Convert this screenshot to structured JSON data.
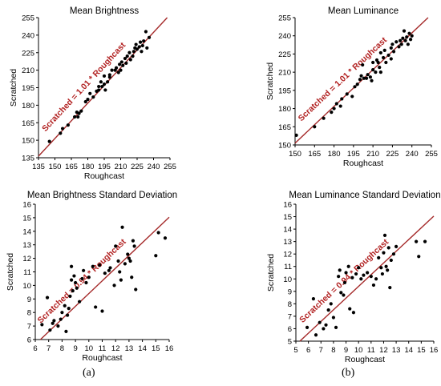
{
  "figure": {
    "caption_a": "(a)",
    "caption_b": "(b)"
  },
  "chart_data": [
    {
      "type": "scatter",
      "title": "Mean Brightness",
      "xlabel": "Roughcast",
      "ylabel": "Scratched",
      "xlim": [
        135,
        255
      ],
      "ylim": [
        135,
        255
      ],
      "xticks": [
        135,
        150,
        165,
        180,
        195,
        210,
        225,
        240,
        255
      ],
      "yticks": [
        135,
        150,
        165,
        180,
        195,
        210,
        225,
        240,
        255
      ],
      "grid": false,
      "fit_slope": 1.01,
      "fit_label": "Scratched = 1.01 * Roughcast",
      "points": [
        [
          145,
          149
        ],
        [
          155,
          156
        ],
        [
          157,
          160
        ],
        [
          162,
          163
        ],
        [
          168,
          170
        ],
        [
          170,
          174
        ],
        [
          171,
          170
        ],
        [
          172,
          173
        ],
        [
          174,
          175
        ],
        [
          178,
          183
        ],
        [
          180,
          185
        ],
        [
          182,
          190
        ],
        [
          185,
          187
        ],
        [
          188,
          192
        ],
        [
          190,
          193
        ],
        [
          190,
          196
        ],
        [
          192,
          200
        ],
        [
          193,
          196
        ],
        [
          195,
          198
        ],
        [
          195,
          205
        ],
        [
          196,
          193
        ],
        [
          198,
          200
        ],
        [
          200,
          204
        ],
        [
          200,
          206
        ],
        [
          202,
          210
        ],
        [
          205,
          210
        ],
        [
          206,
          212
        ],
        [
          208,
          208
        ],
        [
          209,
          215
        ],
        [
          210,
          210
        ],
        [
          211,
          217
        ],
        [
          212,
          214
        ],
        [
          214,
          220
        ],
        [
          215,
          216
        ],
        [
          216,
          222
        ],
        [
          218,
          225
        ],
        [
          219,
          219
        ],
        [
          221,
          222
        ],
        [
          222,
          226
        ],
        [
          223,
          229
        ],
        [
          224,
          232
        ],
        [
          225,
          228
        ],
        [
          227,
          230
        ],
        [
          228,
          234
        ],
        [
          229,
          226
        ],
        [
          230,
          231
        ],
        [
          231,
          235
        ],
        [
          233,
          243
        ],
        [
          234,
          229
        ],
        [
          236,
          238
        ]
      ]
    },
    {
      "type": "scatter",
      "title": "Mean Luminance",
      "xlabel": "Roughcast",
      "ylabel": "Scratched",
      "xlim": [
        150,
        255
      ],
      "ylim": [
        150,
        255
      ],
      "xticks": [
        150,
        165,
        180,
        195,
        210,
        225,
        240,
        255
      ],
      "yticks": [
        150,
        165,
        180,
        195,
        210,
        225,
        240,
        255
      ],
      "grid": false,
      "fit_slope": 1.01,
      "fit_label": "Scratched = 1.01 * Roughcast",
      "points": [
        [
          151,
          158
        ],
        [
          165,
          165
        ],
        [
          172,
          172
        ],
        [
          178,
          177
        ],
        [
          180,
          180
        ],
        [
          182,
          184
        ],
        [
          185,
          182
        ],
        [
          186,
          188
        ],
        [
          190,
          192
        ],
        [
          194,
          190
        ],
        [
          196,
          198
        ],
        [
          198,
          200
        ],
        [
          200,
          204
        ],
        [
          201,
          207
        ],
        [
          202,
          216
        ],
        [
          203,
          205
        ],
        [
          205,
          205
        ],
        [
          206,
          208
        ],
        [
          208,
          206
        ],
        [
          210,
          212
        ],
        [
          210,
          218
        ],
        [
          212,
          210
        ],
        [
          213,
          220
        ],
        [
          215,
          214
        ],
        [
          216,
          226
        ],
        [
          218,
          222
        ],
        [
          219,
          228
        ],
        [
          220,
          218
        ],
        [
          222,
          224
        ],
        [
          224,
          230
        ],
        [
          225,
          233
        ],
        [
          226,
          227
        ],
        [
          228,
          235
        ],
        [
          230,
          231
        ],
        [
          231,
          236
        ],
        [
          232,
          233
        ],
        [
          233,
          238
        ],
        [
          234,
          244
        ],
        [
          235,
          236
        ],
        [
          236,
          239
        ],
        [
          237,
          233
        ],
        [
          238,
          242
        ],
        [
          239,
          237
        ],
        [
          240,
          240
        ],
        [
          216,
          210
        ],
        [
          214,
          218
        ],
        [
          224,
          221
        ],
        [
          209,
          203
        ]
      ]
    },
    {
      "type": "scatter",
      "title": "Mean Brightness Standard Deviation",
      "xlabel": "Roughcast",
      "ylabel": "Scratched",
      "xlim": [
        6,
        16
      ],
      "ylim": [
        6,
        16
      ],
      "xticks": [
        6,
        7,
        8,
        9,
        10,
        11,
        12,
        13,
        14,
        15,
        16
      ],
      "yticks": [
        6,
        7,
        8,
        9,
        10,
        11,
        12,
        13,
        14,
        15,
        16
      ],
      "grid": false,
      "fit_slope": 0.94,
      "fit_label": "Scratched = 0.94 * Roughcast",
      "points": [
        [
          6.5,
          7.1
        ],
        [
          6.9,
          9.1
        ],
        [
          7.1,
          6.7
        ],
        [
          7.3,
          7.2
        ],
        [
          7.4,
          7.4
        ],
        [
          7.7,
          7.0
        ],
        [
          7.9,
          7.5
        ],
        [
          8.0,
          8.0
        ],
        [
          8.2,
          8.5
        ],
        [
          8.3,
          6.6
        ],
        [
          8.4,
          7.8
        ],
        [
          8.5,
          8.3
        ],
        [
          8.6,
          9.2
        ],
        [
          8.7,
          10.4
        ],
        [
          8.7,
          11.4
        ],
        [
          8.8,
          9.6
        ],
        [
          8.9,
          10.7
        ],
        [
          9.0,
          10.2
        ],
        [
          9.1,
          9.8
        ],
        [
          9.3,
          8.8
        ],
        [
          9.5,
          10.5
        ],
        [
          9.6,
          11.1
        ],
        [
          9.8,
          10.2
        ],
        [
          10.0,
          10.6
        ],
        [
          10.3,
          11.4
        ],
        [
          10.5,
          8.4
        ],
        [
          10.8,
          11.5
        ],
        [
          11.0,
          8.1
        ],
        [
          11.2,
          10.9
        ],
        [
          11.5,
          11.1
        ],
        [
          11.6,
          11.3
        ],
        [
          11.9,
          10.0
        ],
        [
          12.0,
          12.9
        ],
        [
          12.2,
          11.8
        ],
        [
          12.4,
          10.4
        ],
        [
          12.5,
          14.3
        ],
        [
          12.7,
          11.6
        ],
        [
          12.9,
          12.3
        ],
        [
          13.1,
          11.8
        ],
        [
          13.2,
          10.6
        ],
        [
          13.3,
          13.3
        ],
        [
          13.4,
          12.9
        ],
        [
          13.5,
          9.7
        ],
        [
          15.0,
          12.2
        ],
        [
          15.2,
          13.9
        ],
        [
          15.7,
          13.5
        ],
        [
          12.3,
          11.0
        ],
        [
          13.0,
          12.0
        ]
      ]
    },
    {
      "type": "scatter",
      "title": "Mean Luminance Standard Deviation",
      "xlabel": "Roughcast",
      "ylabel": "Scratched",
      "xlim": [
        5,
        16
      ],
      "ylim": [
        5,
        16
      ],
      "xticks": [
        5,
        6,
        7,
        8,
        9,
        10,
        11,
        12,
        13,
        14,
        15,
        16
      ],
      "yticks": [
        5,
        6,
        7,
        8,
        9,
        10,
        11,
        12,
        13,
        14,
        15,
        16
      ],
      "grid": false,
      "fit_slope": 0.94,
      "fit_label": "Scratched = 0.94 * Roughcast",
      "points": [
        [
          5.9,
          6.1
        ],
        [
          6.4,
          8.4
        ],
        [
          6.6,
          5.5
        ],
        [
          6.9,
          6.5
        ],
        [
          7.2,
          6.0
        ],
        [
          7.4,
          6.3
        ],
        [
          7.6,
          7.5
        ],
        [
          7.8,
          8.0
        ],
        [
          8.0,
          6.9
        ],
        [
          8.2,
          6.1
        ],
        [
          8.4,
          10.2
        ],
        [
          8.5,
          10.7
        ],
        [
          8.6,
          8.9
        ],
        [
          8.8,
          8.7
        ],
        [
          8.9,
          9.7
        ],
        [
          9.0,
          10.5
        ],
        [
          9.2,
          11.0
        ],
        [
          9.3,
          7.6
        ],
        [
          9.5,
          10.1
        ],
        [
          9.6,
          7.3
        ],
        [
          9.8,
          10.4
        ],
        [
          10.0,
          10.9
        ],
        [
          10.2,
          10.0
        ],
        [
          10.4,
          10.3
        ],
        [
          10.7,
          10.5
        ],
        [
          11.0,
          10.2
        ],
        [
          11.2,
          9.5
        ],
        [
          11.4,
          10.0
        ],
        [
          11.6,
          11.7
        ],
        [
          11.9,
          10.4
        ],
        [
          12.0,
          12.1
        ],
        [
          12.1,
          13.5
        ],
        [
          12.2,
          11.0
        ],
        [
          12.3,
          10.7
        ],
        [
          12.5,
          9.3
        ],
        [
          12.6,
          11.5
        ],
        [
          12.8,
          12.0
        ],
        [
          13.0,
          12.6
        ],
        [
          14.6,
          13.0
        ],
        [
          14.8,
          11.8
        ],
        [
          15.3,
          13.0
        ],
        [
          12.4,
          12.5
        ],
        [
          11.8,
          10.9
        ]
      ]
    }
  ]
}
